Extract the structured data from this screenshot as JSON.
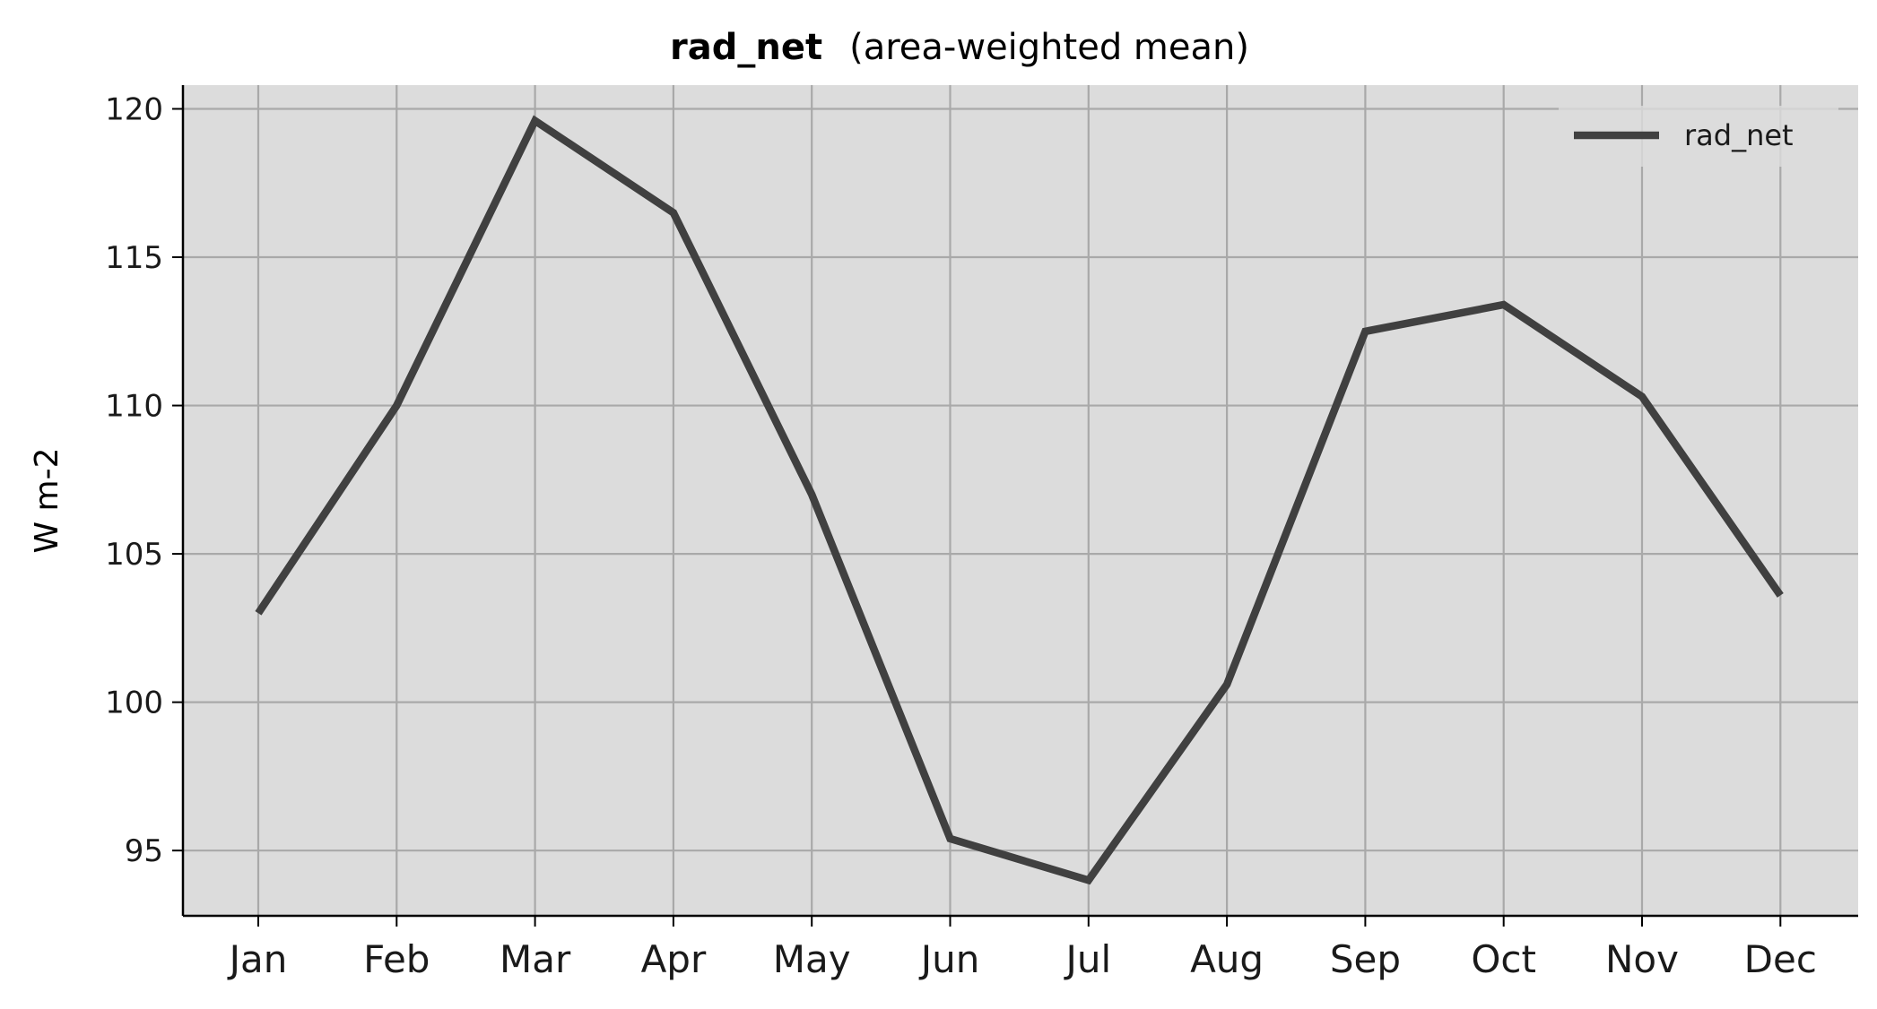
{
  "chart_data": {
    "type": "line",
    "title": "rad_net",
    "subtitle": "(area-weighted mean)",
    "xlabel": "",
    "ylabel": "W m-2",
    "categories": [
      "Jan",
      "Feb",
      "Mar",
      "Apr",
      "May",
      "Jun",
      "Jul",
      "Aug",
      "Sep",
      "Oct",
      "Nov",
      "Dec"
    ],
    "series": [
      {
        "name": "rad_net",
        "values": [
          103.0,
          110.0,
          119.6,
          116.5,
          107.0,
          95.4,
          94.0,
          100.6,
          112.5,
          113.4,
          110.3,
          103.6
        ],
        "color": "#404040"
      }
    ],
    "ylim": [
      92.8,
      120.8
    ],
    "yticks": [
      95,
      100,
      105,
      110,
      115,
      120
    ],
    "grid": true,
    "legend": "top-right",
    "colors": {
      "plot_background": "#dcdcdc",
      "grid": "#a9a9a9",
      "axis": "#000000"
    }
  }
}
